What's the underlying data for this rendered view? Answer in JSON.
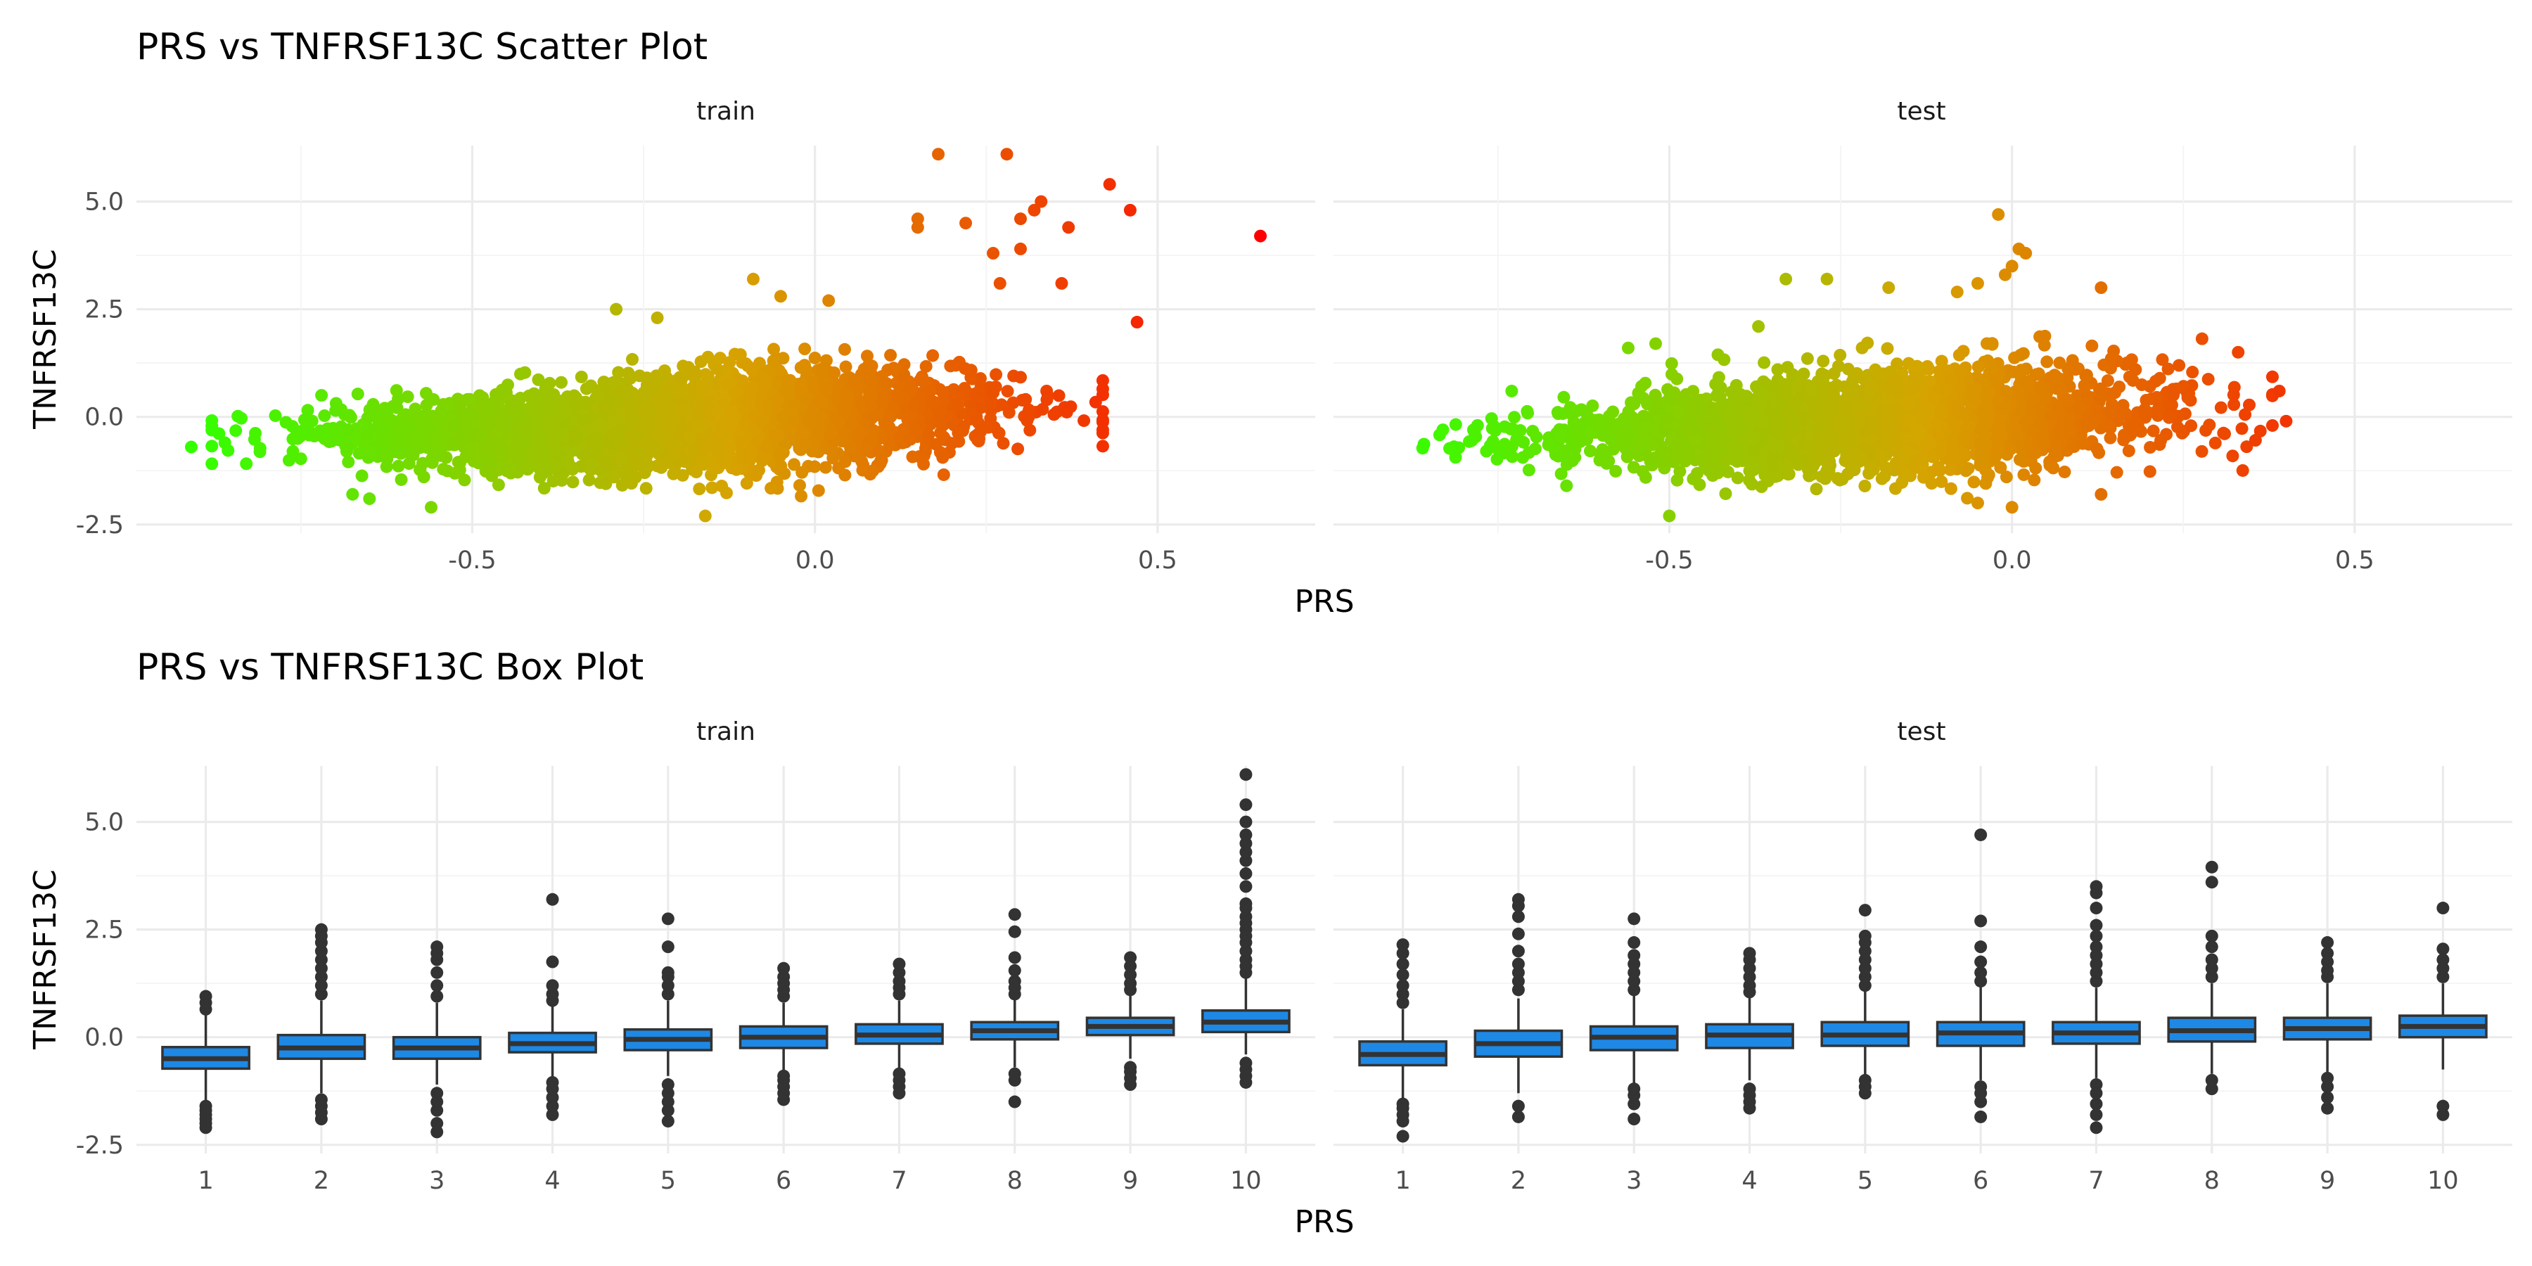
{
  "chart_data": [
    {
      "type": "scatter",
      "title": "PRS vs TNFRSF13C Scatter Plot",
      "xlabel": "PRS",
      "ylabel": "TNFRSF13C",
      "xlim": [
        -0.99,
        0.73
      ],
      "ylim": [
        -2.7,
        6.3
      ],
      "x_ticks": [
        -0.5,
        0.0,
        0.5
      ],
      "x_tick_labels": [
        "-0.5",
        "0.0",
        "0.5"
      ],
      "y_ticks": [
        -2.5,
        0.0,
        2.5,
        5.0
      ],
      "y_tick_labels": [
        "-2.5",
        "0.0",
        "2.5",
        "5.0"
      ],
      "grid": true,
      "color_gradient": {
        "low": "#33ff00",
        "mid": "#d6a400",
        "high": "#ff0000",
        "domain": [
          -0.9,
          0.65
        ]
      },
      "panels": [
        {
          "name": "train",
          "bulk": {
            "x_range": [
              -0.88,
              0.42
            ],
            "slope": 1.7,
            "intercept": 0.1,
            "spread": 0.45,
            "count": 3200
          },
          "points": [
            {
              "x": -0.91,
              "y": -0.7
            },
            {
              "x": -0.72,
              "y": 0.5
            },
            {
              "x": -0.65,
              "y": -1.9
            },
            {
              "x": -0.56,
              "y": -2.1
            },
            {
              "x": -0.29,
              "y": 2.5
            },
            {
              "x": -0.23,
              "y": 2.3
            },
            {
              "x": -0.16,
              "y": -2.3
            },
            {
              "x": -0.09,
              "y": 3.2
            },
            {
              "x": -0.05,
              "y": 2.8
            },
            {
              "x": 0.02,
              "y": 2.7
            },
            {
              "x": 0.15,
              "y": 4.6
            },
            {
              "x": 0.15,
              "y": 4.4
            },
            {
              "x": 0.18,
              "y": 6.1
            },
            {
              "x": 0.22,
              "y": 4.5
            },
            {
              "x": 0.26,
              "y": 3.8
            },
            {
              "x": 0.27,
              "y": 3.1
            },
            {
              "x": 0.28,
              "y": 6.1
            },
            {
              "x": 0.3,
              "y": 4.6
            },
            {
              "x": 0.3,
              "y": 3.9
            },
            {
              "x": 0.32,
              "y": 4.8
            },
            {
              "x": 0.33,
              "y": 5.0
            },
            {
              "x": 0.36,
              "y": 3.1
            },
            {
              "x": 0.37,
              "y": 4.4
            },
            {
              "x": 0.43,
              "y": 5.4
            },
            {
              "x": 0.46,
              "y": 4.8
            },
            {
              "x": 0.47,
              "y": 2.2
            },
            {
              "x": 0.65,
              "y": 4.2
            }
          ]
        },
        {
          "name": "test",
          "bulk": {
            "x_range": [
              -0.86,
              0.38
            ],
            "slope": 1.2,
            "intercept": 0.05,
            "spread": 0.5,
            "count": 2600
          },
          "points": [
            {
              "x": -0.73,
              "y": 0.6
            },
            {
              "x": -0.65,
              "y": -1.6
            },
            {
              "x": -0.56,
              "y": 1.6
            },
            {
              "x": -0.52,
              "y": 1.7
            },
            {
              "x": -0.5,
              "y": -2.3
            },
            {
              "x": -0.37,
              "y": 2.1
            },
            {
              "x": -0.33,
              "y": 3.2
            },
            {
              "x": -0.27,
              "y": 3.2
            },
            {
              "x": -0.18,
              "y": 3.0
            },
            {
              "x": -0.08,
              "y": 2.9
            },
            {
              "x": -0.05,
              "y": 3.1
            },
            {
              "x": -0.02,
              "y": 4.7
            },
            {
              "x": -0.01,
              "y": 3.3
            },
            {
              "x": 0.0,
              "y": 3.5
            },
            {
              "x": 0.01,
              "y": 3.9
            },
            {
              "x": 0.02,
              "y": 3.8
            },
            {
              "x": 0.0,
              "y": -2.1
            },
            {
              "x": -0.05,
              "y": -2.0
            },
            {
              "x": 0.13,
              "y": 3.0
            },
            {
              "x": 0.13,
              "y": -1.8
            },
            {
              "x": 0.33,
              "y": 1.5
            },
            {
              "x": 0.38,
              "y": -0.2
            },
            {
              "x": 0.39,
              "y": 0.6
            },
            {
              "x": 0.4,
              "y": -0.1
            }
          ]
        }
      ]
    },
    {
      "type": "box",
      "title": "PRS vs TNFRSF13C Box Plot",
      "xlabel": "PRS",
      "ylabel": "TNFRSF13C",
      "ylim": [
        -2.7,
        6.3
      ],
      "categories": [
        "1",
        "2",
        "3",
        "4",
        "5",
        "6",
        "7",
        "8",
        "9",
        "10"
      ],
      "y_ticks": [
        -2.5,
        0.0,
        2.5,
        5.0
      ],
      "y_tick_labels": [
        "-2.5",
        "0.0",
        "2.5",
        "5.0"
      ],
      "grid": true,
      "box_fill": "#1e88e5",
      "box_stroke": "#333333",
      "panels": [
        {
          "name": "train",
          "boxes": [
            {
              "category": "1",
              "whisker_low": -1.5,
              "q1": -0.73,
              "median": -0.5,
              "q3": -0.23,
              "whisker_high": 0.55,
              "outliers": [
                -2.1,
                -2.0,
                -1.9,
                -1.8,
                -1.7,
                -1.6,
                0.65,
                0.8,
                0.95
              ]
            },
            {
              "category": "2",
              "whisker_low": -1.3,
              "q1": -0.5,
              "median": -0.25,
              "q3": 0.05,
              "whisker_high": 0.85,
              "outliers": [
                -1.9,
                -1.75,
                -1.6,
                -1.45,
                1.0,
                1.2,
                1.4,
                1.6,
                1.8,
                2.0,
                2.2,
                2.35,
                2.5
              ]
            },
            {
              "category": "3",
              "whisker_low": -1.1,
              "q1": -0.5,
              "median": -0.25,
              "q3": 0.0,
              "whisker_high": 0.8,
              "outliers": [
                -2.2,
                -2.0,
                -1.7,
                -1.5,
                -1.3,
                0.95,
                1.2,
                1.5,
                1.8,
                1.95,
                2.1
              ]
            },
            {
              "category": "4",
              "whisker_low": -0.95,
              "q1": -0.35,
              "median": -0.15,
              "q3": 0.1,
              "whisker_high": 0.75,
              "outliers": [
                -1.8,
                -1.6,
                -1.4,
                -1.2,
                -1.05,
                0.85,
                1.0,
                1.2,
                1.75,
                3.2
              ]
            },
            {
              "category": "5",
              "whisker_low": -0.9,
              "q1": -0.3,
              "median": -0.05,
              "q3": 0.18,
              "whisker_high": 0.85,
              "outliers": [
                -1.95,
                -1.7,
                -1.5,
                -1.3,
                -1.1,
                1.0,
                1.2,
                1.4,
                1.5,
                2.1,
                2.75
              ]
            },
            {
              "category": "6",
              "whisker_low": -0.8,
              "q1": -0.25,
              "median": 0.0,
              "q3": 0.25,
              "whisker_high": 0.8,
              "outliers": [
                -1.45,
                -1.3,
                -1.15,
                -1.0,
                -0.9,
                0.95,
                1.1,
                1.25,
                1.4,
                1.6
              ]
            },
            {
              "category": "7",
              "whisker_low": -0.75,
              "q1": -0.15,
              "median": 0.05,
              "q3": 0.3,
              "whisker_high": 0.85,
              "outliers": [
                -1.3,
                -1.15,
                -1.0,
                -0.85,
                1.0,
                1.15,
                1.3,
                1.5,
                1.7
              ]
            },
            {
              "category": "8",
              "whisker_low": -0.7,
              "q1": -0.05,
              "median": 0.15,
              "q3": 0.35,
              "whisker_high": 0.9,
              "outliers": [
                -1.5,
                -1.0,
                -0.85,
                1.0,
                1.15,
                1.3,
                1.55,
                1.85,
                2.45,
                2.85
              ]
            },
            {
              "category": "9",
              "whisker_low": -0.5,
              "q1": 0.05,
              "median": 0.25,
              "q3": 0.45,
              "whisker_high": 1.0,
              "outliers": [
                -1.1,
                -0.95,
                -0.8,
                -0.7,
                1.1,
                1.25,
                1.45,
                1.65,
                1.85
              ]
            },
            {
              "category": "10",
              "whisker_low": -0.4,
              "q1": 0.12,
              "median": 0.35,
              "q3": 0.62,
              "whisker_high": 1.4,
              "outliers": [
                -1.05,
                -0.9,
                -0.75,
                -0.6,
                1.5,
                1.65,
                1.8,
                2.0,
                2.2,
                2.35,
                2.5,
                2.65,
                2.8,
                3.0,
                3.1,
                3.5,
                3.8,
                4.1,
                4.3,
                4.5,
                4.7,
                5.0,
                5.4,
                6.1
              ]
            }
          ]
        },
        {
          "name": "test",
          "boxes": [
            {
              "category": "1",
              "whisker_low": -1.45,
              "q1": -0.65,
              "median": -0.4,
              "q3": -0.1,
              "whisker_high": 0.65,
              "outliers": [
                -2.3,
                -1.95,
                -1.8,
                -1.65,
                -1.55,
                0.8,
                1.0,
                1.2,
                1.45,
                1.7,
                1.95,
                2.15
              ]
            },
            {
              "category": "2",
              "whisker_low": -1.3,
              "q1": -0.45,
              "median": -0.15,
              "q3": 0.15,
              "whisker_high": 0.9,
              "outliers": [
                -1.85,
                -1.6,
                1.1,
                1.3,
                1.5,
                1.7,
                2.0,
                2.4,
                2.8,
                3.05,
                3.2
              ]
            },
            {
              "category": "3",
              "whisker_low": -1.1,
              "q1": -0.3,
              "median": 0.0,
              "q3": 0.25,
              "whisker_high": 1.0,
              "outliers": [
                -1.9,
                -1.55,
                -1.35,
                -1.2,
                1.1,
                1.3,
                1.5,
                1.7,
                1.9,
                2.2,
                2.75
              ]
            },
            {
              "category": "4",
              "whisker_low": -1.0,
              "q1": -0.25,
              "median": 0.05,
              "q3": 0.3,
              "whisker_high": 0.95,
              "outliers": [
                -1.65,
                -1.5,
                -1.35,
                -1.2,
                1.05,
                1.2,
                1.4,
                1.6,
                1.8,
                1.95
              ]
            },
            {
              "category": "5",
              "whisker_low": -0.95,
              "q1": -0.2,
              "median": 0.05,
              "q3": 0.35,
              "whisker_high": 1.1,
              "outliers": [
                -1.3,
                -1.15,
                -1.0,
                1.2,
                1.4,
                1.6,
                1.8,
                2.0,
                2.2,
                2.35,
                2.95
              ]
            },
            {
              "category": "6",
              "whisker_low": -1.0,
              "q1": -0.2,
              "median": 0.1,
              "q3": 0.35,
              "whisker_high": 1.2,
              "outliers": [
                -1.85,
                -1.5,
                -1.3,
                -1.15,
                1.3,
                1.5,
                1.75,
                2.1,
                2.7,
                4.7
              ]
            },
            {
              "category": "7",
              "whisker_low": -0.95,
              "q1": -0.15,
              "median": 0.1,
              "q3": 0.35,
              "whisker_high": 1.15,
              "outliers": [
                -2.1,
                -1.8,
                -1.55,
                -1.3,
                -1.1,
                1.3,
                1.5,
                1.7,
                1.9,
                2.1,
                2.35,
                2.6,
                3.0,
                3.35,
                3.5
              ]
            },
            {
              "category": "8",
              "whisker_low": -0.85,
              "q1": -0.1,
              "median": 0.15,
              "q3": 0.45,
              "whisker_high": 1.25,
              "outliers": [
                -1.2,
                -1.0,
                1.4,
                1.6,
                1.8,
                2.1,
                2.35,
                3.6,
                3.95
              ]
            },
            {
              "category": "9",
              "whisker_low": -0.85,
              "q1": -0.05,
              "median": 0.2,
              "q3": 0.45,
              "whisker_high": 1.25,
              "outliers": [
                -1.65,
                -1.4,
                -1.15,
                -0.95,
                1.4,
                1.55,
                1.75,
                1.95,
                2.2
              ]
            },
            {
              "category": "10",
              "whisker_low": -0.75,
              "q1": 0.0,
              "median": 0.25,
              "q3": 0.5,
              "whisker_high": 1.25,
              "outliers": [
                -1.8,
                -1.6,
                1.4,
                1.6,
                1.8,
                2.05,
                3.0
              ]
            }
          ]
        }
      ]
    }
  ]
}
